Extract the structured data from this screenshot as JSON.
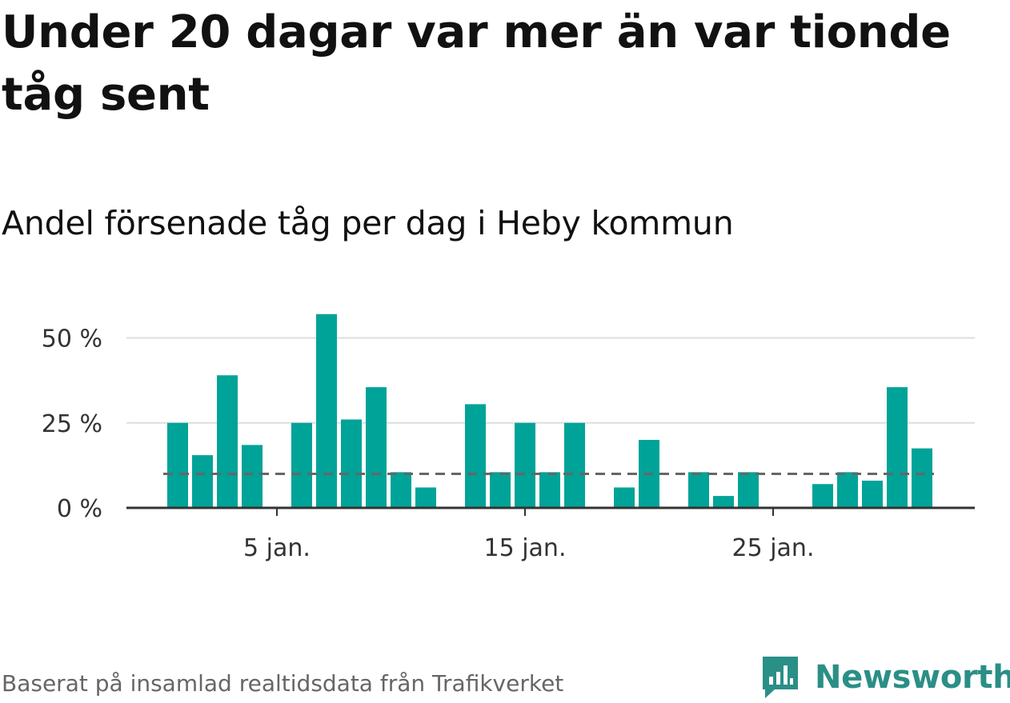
{
  "title": "Under 20 dagar var mer än var tionde tåg sent",
  "subtitle": "Andel försenade tåg per dag i Heby kommun",
  "source": "Baserat på insamlad realtidsdata från Trafikverket",
  "logo": {
    "name": "Newsworthy",
    "icon": "newsworthy-logo-icon"
  },
  "colors": {
    "bar": "#00a398",
    "reference_line": "#666666",
    "grid": "#dddddd",
    "axis": "#333333",
    "logo": "#2a8f86"
  },
  "chart_data": {
    "type": "bar",
    "x": [
      1,
      2,
      3,
      4,
      5,
      6,
      7,
      8,
      9,
      10,
      11,
      12,
      13,
      14,
      15,
      16,
      17,
      18,
      19,
      20,
      21,
      22,
      23,
      24,
      25,
      26,
      27,
      28,
      29,
      30,
      31
    ],
    "values": [
      25,
      15.5,
      39,
      18.5,
      0,
      25,
      57,
      26,
      35.5,
      10.5,
      6,
      0,
      30.5,
      10.5,
      25,
      10.5,
      25,
      0,
      6,
      20,
      0,
      10.5,
      3.5,
      10.5,
      0,
      0,
      7,
      10.5,
      8,
      35.5,
      17.5
    ],
    "reference_line": 10,
    "ylim": [
      0,
      60
    ],
    "yticks": [
      0,
      25,
      50
    ],
    "ytick_labels": [
      "0 %",
      "25 %",
      "50 %"
    ],
    "xticks": [
      5,
      15,
      25
    ],
    "xtick_labels": [
      "5 jan.",
      "15 jan.",
      "25 jan."
    ],
    "grid": true
  }
}
